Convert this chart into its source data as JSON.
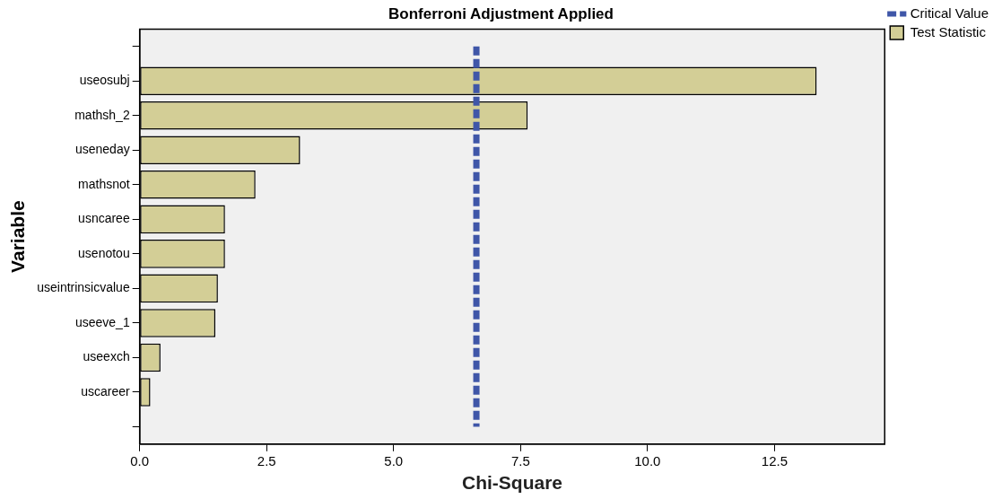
{
  "chart_data": {
    "type": "bar",
    "orientation": "horizontal",
    "title": "Bonferroni Adjustment Applied",
    "xlabel": "Chi-Square",
    "ylabel": "Variable",
    "categories": [
      null,
      "useosubj",
      "mathsh_2",
      "useneday",
      "mathsnot",
      "usncaree",
      "usenotou",
      "useintrinsicvalue",
      "useeve_1",
      "useexch",
      "uscareer",
      null
    ],
    "series": [
      {
        "name": "Test Statistic",
        "color": "#d3ce96",
        "values": [
          null,
          13.33,
          7.64,
          3.16,
          2.28,
          1.68,
          1.68,
          1.54,
          1.49,
          0.41,
          0.21,
          null
        ]
      }
    ],
    "ref_lines": [
      {
        "axis": "x",
        "value": 6.63,
        "label": "Critical Value",
        "color": "#3f56a8",
        "line_style": "dashed"
      }
    ],
    "xlim": [
      0,
      14.67
    ],
    "xticks": [
      {
        "value": 0,
        "label": "0.0"
      },
      {
        "value": 2.5,
        "label": "2.5"
      },
      {
        "value": 5,
        "label": "5.0"
      },
      {
        "value": 7.5,
        "label": "7.5"
      },
      {
        "value": 10,
        "label": "10.0"
      },
      {
        "value": 12.5,
        "label": "12.5"
      }
    ],
    "grid": false,
    "legend": "top right"
  }
}
